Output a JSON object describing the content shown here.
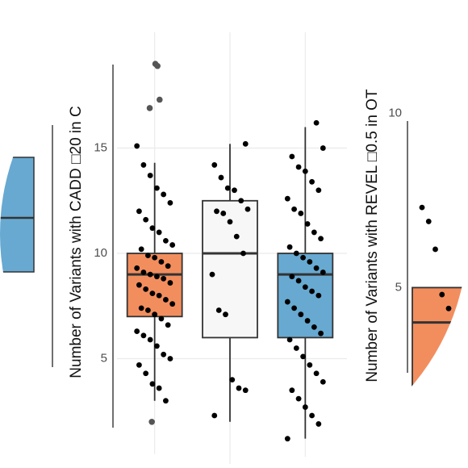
{
  "chart_data": [
    {
      "type": "box",
      "y_label": "Number of Variants with CADD □20 in C",
      "ylim": [
        0,
        20.5
      ],
      "yticks": [
        5,
        10,
        15
      ],
      "grid": true,
      "boxes": [
        {
          "color": "#f28e5e",
          "q1": 7,
          "median": 9,
          "q3": 10,
          "whisker_low": 3,
          "whisker_high": 14.3,
          "points": [
            15.1,
            14.2,
            13.7,
            13.1,
            12.8,
            12.4,
            12.0,
            11.6,
            11.2,
            11.0,
            10.6,
            10.4,
            10.2,
            9.9,
            9.8,
            9.6,
            9.4,
            9.3,
            9.1,
            9.0,
            8.9,
            8.8,
            8.6,
            8.5,
            8.3,
            8.1,
            8.0,
            7.8,
            7.6,
            7.4,
            7.3,
            7.1,
            6.9,
            6.6,
            6.3,
            6.1,
            5.9,
            5.6,
            5.2,
            5.0,
            4.7,
            4.3,
            3.8,
            3.6,
            3.0
          ],
          "outliers": [
            19.0,
            18.9,
            17.3,
            16.9,
            2.0
          ]
        },
        {
          "color": "#f7f7f7",
          "q1": 6,
          "median": 10,
          "q3": 12.5,
          "whisker_low": 2,
          "whisker_high": 15.2,
          "points": [
            15.2,
            14.2,
            13.6,
            13.1,
            13.0,
            12.5,
            12.1,
            12.0,
            11.9,
            11.5,
            10.8,
            10.0,
            9.0,
            7.3,
            7.1,
            4.0,
            3.6,
            3.5,
            2.3
          ],
          "outliers": []
        },
        {
          "color": "#67a9d1",
          "q1": 6,
          "median": 9,
          "q3": 10,
          "whisker_low": 1.2,
          "whisker_high": 16,
          "points": [
            16.2,
            15.0,
            14.6,
            14.1,
            13.9,
            13.4,
            13.0,
            12.6,
            12.1,
            11.9,
            11.4,
            11.0,
            10.7,
            10.3,
            10.0,
            9.8,
            9.6,
            9.3,
            9.1,
            8.9,
            8.7,
            8.4,
            8.2,
            8.0,
            7.7,
            7.4,
            7.1,
            6.8,
            6.5,
            6.2,
            5.9,
            5.5,
            5.1,
            4.7,
            4.3,
            3.9,
            3.5,
            3.1,
            2.7,
            2.3,
            1.9,
            1.2
          ],
          "outliers": []
        }
      ]
    },
    {
      "type": "box",
      "y_label": "Number of Variants with REVEL □0.5 in OT",
      "ylim": [
        2.6,
        10.2
      ],
      "yticks": [
        5,
        10
      ],
      "grid": false,
      "boxes": [
        {
          "color": "#f28e5e",
          "median": 4,
          "q3": 5,
          "points": [
            7.3,
            6.9,
            6.1,
            4.8,
            4.4
          ],
          "outliers": []
        }
      ]
    }
  ]
}
